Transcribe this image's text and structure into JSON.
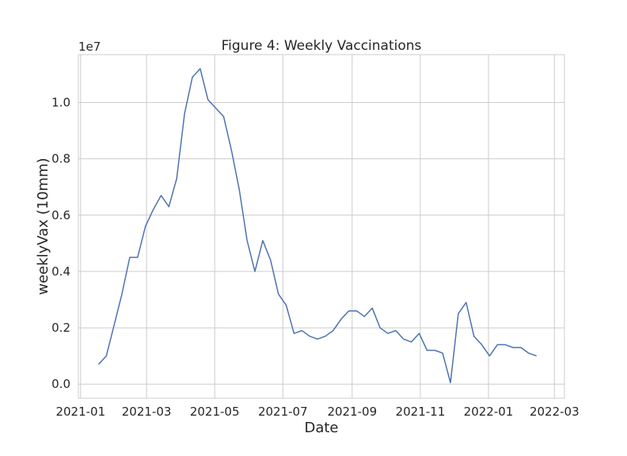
{
  "chart_data": {
    "type": "line",
    "title": "Figure 4: Weekly Vaccinations",
    "xlabel": "Date",
    "ylabel": "weeklyVax (10mm)",
    "y_offset_label": "1e7",
    "y_multiplier": 10000000,
    "xlim": [
      "2020-12-30",
      "2022-03-10"
    ],
    "ylim": [
      -0.05,
      1.17
    ],
    "x_ticks": [
      "2021-01-01",
      "2021-03-01",
      "2021-05-01",
      "2021-07-01",
      "2021-09-01",
      "2021-11-01",
      "2022-01-01",
      "2022-03-01"
    ],
    "x_tick_labels": [
      "2021-01",
      "2021-03",
      "2021-05",
      "2021-07",
      "2021-09",
      "2021-11",
      "2022-01",
      "2022-03"
    ],
    "y_ticks": [
      0.0,
      0.2,
      0.4,
      0.6,
      0.8,
      1.0
    ],
    "y_tick_labels": [
      "0.0",
      "0.2",
      "0.4",
      "0.6",
      "0.8",
      "1.0"
    ],
    "grid": true,
    "line_color": "#4c72b0",
    "series": [
      {
        "x": [
          "2021-01-17",
          "2021-01-24",
          "2021-01-31",
          "2021-02-07",
          "2021-02-14",
          "2021-02-21",
          "2021-02-28",
          "2021-03-07",
          "2021-03-14",
          "2021-03-21",
          "2021-03-28",
          "2021-04-04",
          "2021-04-11",
          "2021-04-18",
          "2021-04-25",
          "2021-05-02",
          "2021-05-09",
          "2021-05-16",
          "2021-05-23",
          "2021-05-30",
          "2021-06-06",
          "2021-06-13",
          "2021-06-20",
          "2021-06-27",
          "2021-07-04",
          "2021-07-11",
          "2021-07-18",
          "2021-07-25",
          "2021-08-01",
          "2021-08-08",
          "2021-08-15",
          "2021-08-22",
          "2021-08-29",
          "2021-09-05",
          "2021-09-12",
          "2021-09-19",
          "2021-09-26",
          "2021-10-03",
          "2021-10-10",
          "2021-10-17",
          "2021-10-24",
          "2021-10-31",
          "2021-11-07",
          "2021-11-14",
          "2021-11-21",
          "2021-11-28",
          "2021-12-05",
          "2021-12-12",
          "2021-12-19",
          "2021-12-26",
          "2022-01-02",
          "2022-01-09",
          "2022-01-16",
          "2022-01-23",
          "2022-01-30",
          "2022-02-06",
          "2022-02-13"
        ],
        "values": [
          0.07,
          0.1,
          0.21,
          0.32,
          0.45,
          0.45,
          0.56,
          0.62,
          0.67,
          0.63,
          0.73,
          0.96,
          1.09,
          1.12,
          1.01,
          0.98,
          0.95,
          0.83,
          0.69,
          0.51,
          0.4,
          0.51,
          0.44,
          0.32,
          0.28,
          0.18,
          0.19,
          0.17,
          0.16,
          0.17,
          0.19,
          0.23,
          0.26,
          0.26,
          0.24,
          0.27,
          0.2,
          0.18,
          0.19,
          0.16,
          0.15,
          0.18,
          0.12,
          0.12,
          0.11,
          0.005,
          0.25,
          0.29,
          0.17,
          0.14,
          0.1,
          0.14,
          0.14,
          0.13,
          0.13,
          0.11,
          0.1
        ]
      }
    ]
  }
}
